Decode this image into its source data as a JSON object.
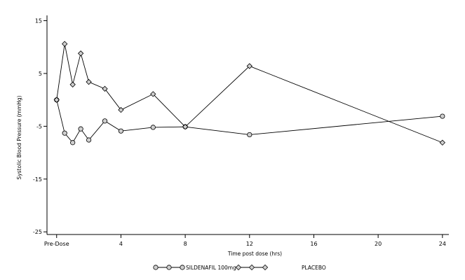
{
  "chart_data": {
    "type": "line",
    "xlabel": "Time post dose (hrs)",
    "ylabel": "Systolic Blood Pressure (mmHg)",
    "xlim": [
      -0.6,
      24.4
    ],
    "ylim": [
      -25.5,
      16
    ],
    "x_ticks": [
      {
        "value": 0,
        "label": "Pre-Dose"
      },
      {
        "value": 4,
        "label": "4"
      },
      {
        "value": 8,
        "label": "8"
      },
      {
        "value": 12,
        "label": "12"
      },
      {
        "value": 16,
        "label": "16"
      },
      {
        "value": 20,
        "label": "20"
      },
      {
        "value": 24,
        "label": "24"
      }
    ],
    "y_ticks": [
      {
        "value": 15,
        "label": "15"
      },
      {
        "value": 5,
        "label": "5"
      },
      {
        "value": -5,
        "label": "-5"
      },
      {
        "value": -15,
        "label": "-15"
      },
      {
        "value": -25,
        "label": "-25"
      }
    ],
    "grid": false,
    "legend_position": "bottom",
    "series": [
      {
        "name": "SILDENAFIL 100mg",
        "marker": "circle",
        "color": "#000000",
        "x": [
          0,
          0.5,
          1,
          1.5,
          2,
          3,
          4,
          6,
          8,
          12,
          24
        ],
        "y": [
          0,
          -6.3,
          -8.1,
          -5.5,
          -7.6,
          -4.0,
          -5.9,
          -5.2,
          -5.1,
          -6.6,
          -3.1
        ]
      },
      {
        "name": "PLACEBO",
        "marker": "diamond",
        "color": "#000000",
        "x": [
          0,
          0.5,
          1,
          1.5,
          2,
          3,
          4,
          6,
          8,
          12,
          24
        ],
        "y": [
          0,
          10.6,
          2.9,
          8.8,
          3.4,
          2.1,
          -1.9,
          1.1,
          -5.1,
          6.4,
          -8.1
        ]
      }
    ]
  }
}
